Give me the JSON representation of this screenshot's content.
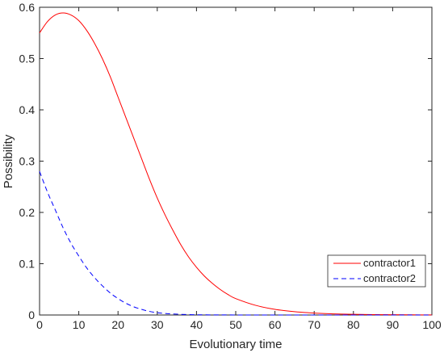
{
  "chart_data": {
    "type": "line",
    "xlabel": "Evolutionary time",
    "ylabel": "Possibility",
    "xlim": [
      0,
      100
    ],
    "ylim": [
      0,
      0.6
    ],
    "xticks": [
      "0",
      "10",
      "20",
      "30",
      "40",
      "50",
      "60",
      "70",
      "80",
      "90",
      "100"
    ],
    "yticks": [
      "0",
      "0.1",
      "0.2",
      "0.3",
      "0.4",
      "0.5",
      "0.6"
    ],
    "grid": false,
    "legend_position": "lower-right",
    "series": [
      {
        "name": "contractor1",
        "color": "#ff0000",
        "style": "solid",
        "x": [
          0,
          2,
          4,
          6,
          8,
          10,
          12,
          14,
          16,
          18,
          20,
          22,
          24,
          26,
          28,
          30,
          32,
          34,
          36,
          38,
          40,
          42,
          44,
          46,
          48,
          50,
          55,
          60,
          65,
          70,
          75,
          80,
          85,
          90,
          95,
          100
        ],
        "y": [
          0.55,
          0.572,
          0.585,
          0.589,
          0.585,
          0.574,
          0.555,
          0.53,
          0.5,
          0.465,
          0.425,
          0.385,
          0.345,
          0.305,
          0.265,
          0.228,
          0.195,
          0.165,
          0.137,
          0.113,
          0.093,
          0.076,
          0.062,
          0.05,
          0.04,
          0.032,
          0.019,
          0.011,
          0.0065,
          0.0038,
          0.0022,
          0.0013,
          0.0008,
          0.0005,
          0.0003,
          0.0002
        ]
      },
      {
        "name": "contractor2",
        "color": "#0000ff",
        "style": "dashed",
        "x": [
          0,
          2,
          4,
          6,
          8,
          10,
          12,
          14,
          16,
          18,
          20,
          22,
          24,
          26,
          28,
          30,
          32,
          34,
          36,
          38,
          40,
          45,
          50,
          60,
          70,
          80,
          90,
          100
        ],
        "y": [
          0.28,
          0.24,
          0.205,
          0.17,
          0.14,
          0.115,
          0.092,
          0.073,
          0.057,
          0.043,
          0.032,
          0.023,
          0.016,
          0.011,
          0.007,
          0.0045,
          0.003,
          0.002,
          0.0013,
          0.0008,
          0.0005,
          0.0002,
          0.0001,
          0,
          0,
          0,
          0,
          0
        ]
      }
    ]
  }
}
